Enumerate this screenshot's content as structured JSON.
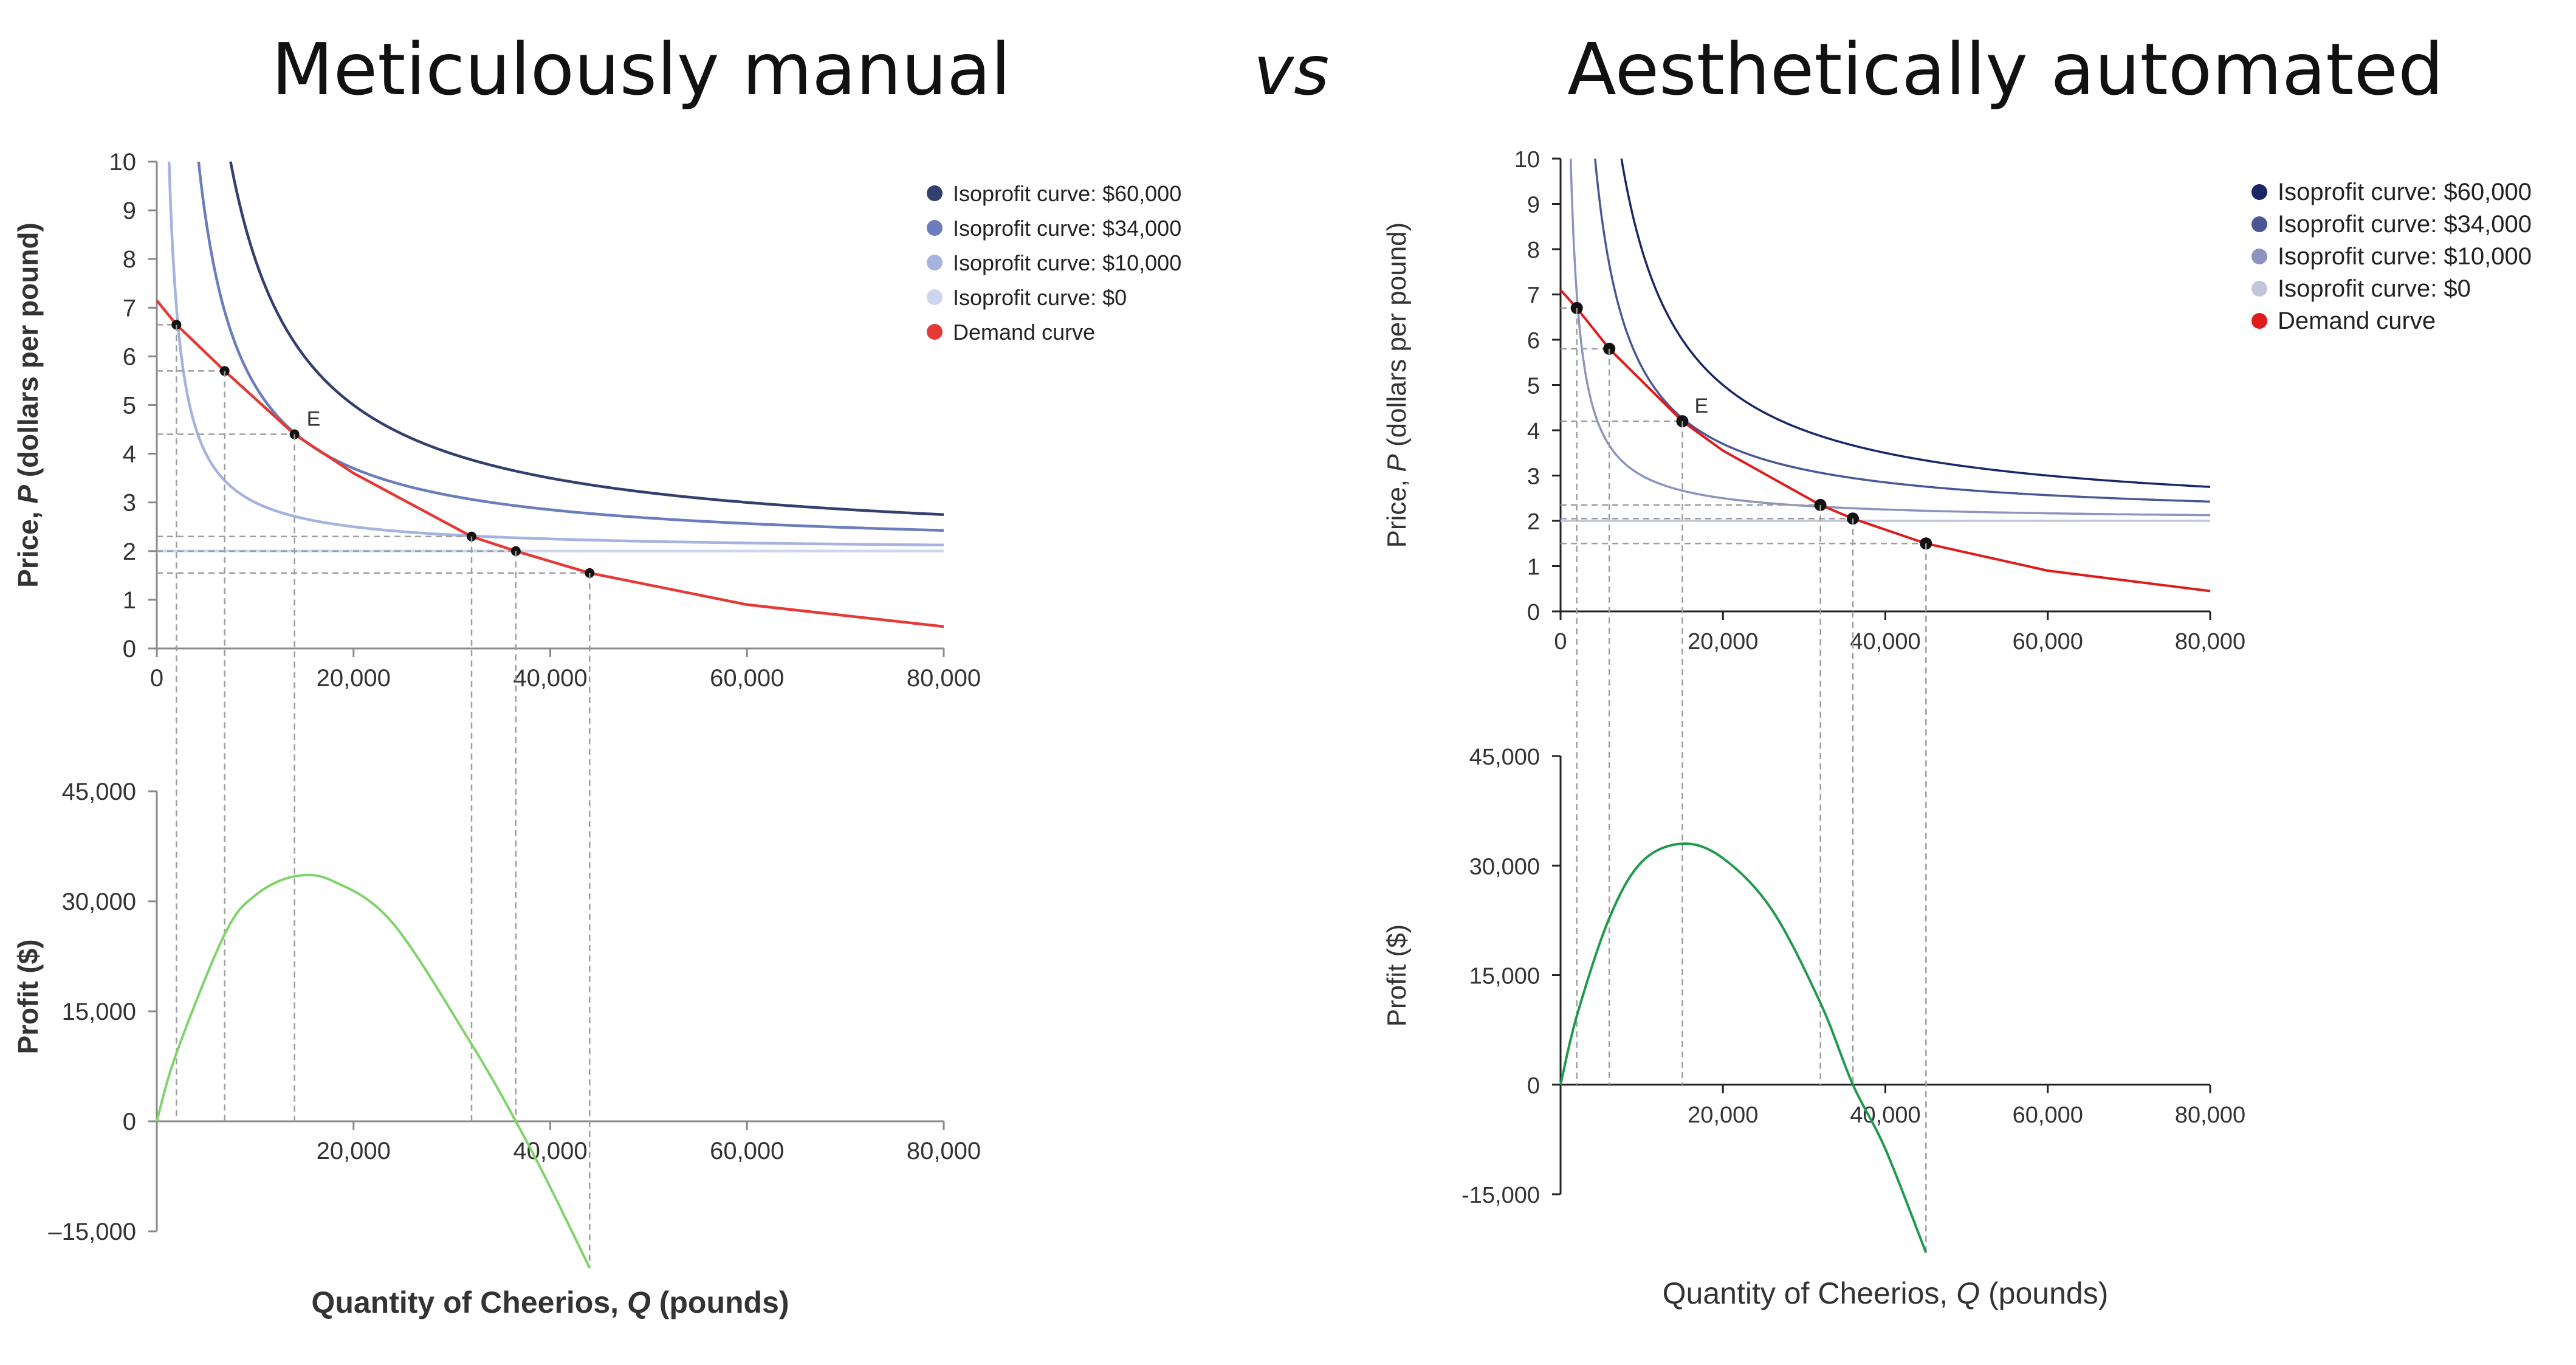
{
  "headings": {
    "left": "Meticulously manual",
    "vs": "vs",
    "right": "Aesthetically automated"
  },
  "chart_data": [
    {
      "type": "line",
      "panel": "left-top",
      "ylabel_main": "Price, ",
      "ylabel_var": "P",
      "ylabel_rest": " (dollars per pound)",
      "xlim": [
        0,
        80000
      ],
      "ylim": [
        0,
        10
      ],
      "x_ticks": [
        "0",
        "20,000",
        "40,000",
        "60,000",
        "80,000"
      ],
      "y_ticks": [
        "0",
        "1",
        "2",
        "3",
        "4",
        "5",
        "6",
        "7",
        "8",
        "9",
        "10"
      ],
      "legend": [
        {
          "label": "Isoprofit curve: $60,000",
          "color": "#333f6e"
        },
        {
          "label": "Isoprofit curve: $34,000",
          "color": "#6a7dbd"
        },
        {
          "label": "Isoprofit curve: $10,000",
          "color": "#a5b3e0"
        },
        {
          "label": "Isoprofit curve: $0",
          "color": "#cdd6ee"
        },
        {
          "label": "Demand curve",
          "color": "#e53935"
        }
      ],
      "series": [
        {
          "name": "Isoprofit curve: $60,000",
          "profit": 60000,
          "cost": 2
        },
        {
          "name": "Isoprofit curve: $34,000",
          "profit": 34000,
          "cost": 2
        },
        {
          "name": "Isoprofit curve: $10,000",
          "profit": 10000,
          "cost": 2
        },
        {
          "name": "Isoprofit curve: $0",
          "profit": 0,
          "cost": 2
        },
        {
          "name": "Demand curve",
          "x": [
            0,
            2000,
            6900,
            14000,
            20000,
            32000,
            36500,
            44000,
            60000,
            80000
          ],
          "y": [
            7.15,
            6.65,
            5.7,
            4.4,
            3.6,
            2.3,
            2.0,
            1.55,
            0.9,
            0.45
          ]
        }
      ],
      "points": [
        {
          "x": 2000,
          "y": 6.65
        },
        {
          "x": 6900,
          "y": 5.7
        },
        {
          "x": 14000,
          "y": 4.4,
          "label": "E"
        },
        {
          "x": 32000,
          "y": 2.3
        },
        {
          "x": 36500,
          "y": 2.0
        },
        {
          "x": 44000,
          "y": 1.55
        }
      ]
    },
    {
      "type": "line",
      "panel": "left-bottom",
      "xlabel_main": "Quantity of Cheerios, ",
      "xlabel_var": "Q",
      "xlabel_rest": " (pounds)",
      "ylabel": "Profit ($)",
      "xlim": [
        0,
        80000
      ],
      "ylim": [
        -15000,
        45000
      ],
      "x_ticks": [
        "20,000",
        "40,000",
        "60,000",
        "80,000"
      ],
      "y_ticks": [
        "–15,000",
        "0",
        "15,000",
        "30,000",
        "45,000"
      ],
      "series": [
        {
          "name": "Profit",
          "color": "#7ed46a",
          "x": [
            0,
            2000,
            6900,
            10000,
            14000,
            18000,
            24000,
            32000,
            36500,
            40000,
            44000
          ],
          "y": [
            0,
            9300,
            25500,
            30800,
            33400,
            32700,
            27000,
            10500,
            0,
            -9000,
            -20000
          ]
        }
      ]
    },
    {
      "type": "line",
      "panel": "right-top",
      "ylabel_main": "Price, ",
      "ylabel_var": "P",
      "ylabel_rest": " (dollars per pound)",
      "xlim": [
        0,
        80000
      ],
      "ylim": [
        0,
        10
      ],
      "x_ticks": [
        "0",
        "20,000",
        "40,000",
        "60,000",
        "80,000"
      ],
      "y_ticks": [
        "0",
        "1",
        "2",
        "3",
        "4",
        "5",
        "6",
        "7",
        "8",
        "9",
        "10"
      ],
      "legend": [
        {
          "label": "Isoprofit curve: $60,000",
          "color": "#1a2766"
        },
        {
          "label": "Isoprofit curve: $34,000",
          "color": "#4a5796"
        },
        {
          "label": "Isoprofit curve: $10,000",
          "color": "#8c93bf"
        },
        {
          "label": "Isoprofit curve: $0",
          "color": "#c2c6dd"
        },
        {
          "label": "Demand curve",
          "color": "#e01b1b"
        }
      ],
      "series": [
        {
          "name": "Isoprofit curve: $60,000",
          "profit": 60000,
          "cost": 2
        },
        {
          "name": "Isoprofit curve: $34,000",
          "profit": 34000,
          "cost": 2
        },
        {
          "name": "Isoprofit curve: $10,000",
          "profit": 10000,
          "cost": 2
        },
        {
          "name": "Isoprofit curve: $0",
          "profit": 0,
          "cost": 2
        },
        {
          "name": "Demand curve",
          "x": [
            0,
            2000,
            6000,
            15000,
            20000,
            32000,
            36000,
            45000,
            60000,
            80000
          ],
          "y": [
            7.1,
            6.7,
            5.8,
            4.2,
            3.55,
            2.35,
            2.05,
            1.5,
            0.9,
            0.45
          ]
        }
      ],
      "points": [
        {
          "x": 2000,
          "y": 6.7
        },
        {
          "x": 6000,
          "y": 5.8
        },
        {
          "x": 15000,
          "y": 4.2,
          "label": "E"
        },
        {
          "x": 32000,
          "y": 2.35
        },
        {
          "x": 36000,
          "y": 2.05
        },
        {
          "x": 45000,
          "y": 1.5
        }
      ]
    },
    {
      "type": "line",
      "panel": "right-bottom",
      "xlabel_main": "Quantity of Cheerios, ",
      "xlabel_var": "Q",
      "xlabel_rest": " (pounds)",
      "ylabel": "Profit ($)",
      "xlim": [
        0,
        80000
      ],
      "ylim": [
        -15000,
        45000
      ],
      "x_ticks": [
        "20,000",
        "40,000",
        "60,000",
        "80,000"
      ],
      "y_ticks": [
        "-15,000",
        "0",
        "15,000",
        "30,000",
        "45,000"
      ],
      "series": [
        {
          "name": "Profit",
          "color": "#1e9a4c",
          "x": [
            0,
            2000,
            6000,
            10000,
            15000,
            20000,
            26000,
            32000,
            36000,
            40000,
            45000
          ],
          "y": [
            0,
            9400,
            22800,
            30500,
            33000,
            31000,
            24000,
            11200,
            0,
            -8800,
            -23000
          ]
        }
      ]
    }
  ]
}
